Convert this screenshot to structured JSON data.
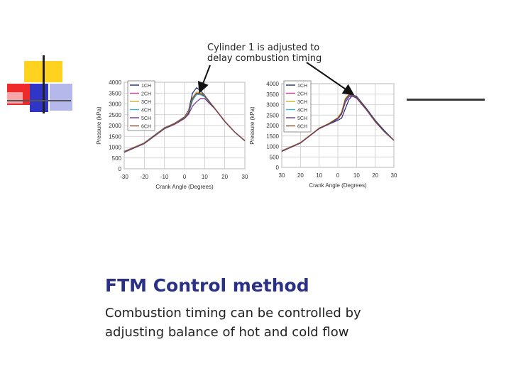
{
  "slide": {
    "title": "FTM Control method",
    "body": "Combustion timing can be controlled by adjusting balance of hot and cold flow"
  },
  "annotation": {
    "text": "Cylinder 1 is adjusted to\ndelay combustion timing"
  },
  "colors": {
    "title": "#2b3087",
    "deco_yellow": "#ffd21f",
    "deco_blue": "#2f35c4",
    "deco_red": "#ee2a2a",
    "deco_lightblue": "#b4b8ea",
    "deco_pink": "#f6a6a6"
  },
  "chart_data": [
    {
      "type": "line",
      "title": "",
      "xlabel": "Crank Angle (Degrees)",
      "ylabel": "Pressure (kPa)",
      "xlim": [
        -30,
        30
      ],
      "ylim": [
        0,
        4000
      ],
      "xticks": [
        "-30",
        "-20",
        "-10",
        "0",
        "10",
        "20",
        "30"
      ],
      "yticks": [
        "0",
        "500",
        "1000",
        "1500",
        "2000",
        "2500",
        "3000",
        "3500",
        "4000"
      ],
      "grid": true,
      "legend": "top-left",
      "series": [
        {
          "name": "1CH",
          "color": "#1a2a80",
          "x": [
            -30,
            -20,
            -10,
            -5,
            0,
            2,
            4,
            6,
            8,
            10,
            15,
            20,
            25,
            30
          ],
          "y": [
            800,
            1200,
            1900,
            2100,
            2400,
            2700,
            3500,
            3750,
            3600,
            3400,
            2800,
            2200,
            1700,
            1300
          ]
        },
        {
          "name": "2CH",
          "color": "#d04090",
          "x": [
            -30,
            -20,
            -10,
            -5,
            0,
            2,
            4,
            6,
            8,
            10,
            15,
            20,
            25,
            30
          ],
          "y": [
            780,
            1180,
            1870,
            2080,
            2360,
            2600,
            3200,
            3480,
            3450,
            3350,
            2800,
            2200,
            1700,
            1300
          ]
        },
        {
          "name": "3CH",
          "color": "#c8b030",
          "x": [
            -30,
            -20,
            -10,
            -5,
            0,
            2,
            4,
            6,
            8,
            10,
            15,
            20,
            25,
            30
          ],
          "y": [
            790,
            1190,
            1880,
            2090,
            2380,
            2650,
            3300,
            3550,
            3500,
            3380,
            2800,
            2200,
            1700,
            1300
          ]
        },
        {
          "name": "4CH",
          "color": "#30b8d8",
          "x": [
            -30,
            -20,
            -10,
            -5,
            0,
            2,
            4,
            6,
            8,
            10,
            15,
            20,
            25,
            30
          ],
          "y": [
            770,
            1170,
            1860,
            2060,
            2340,
            2560,
            3150,
            3430,
            3420,
            3330,
            2790,
            2190,
            1690,
            1290
          ]
        },
        {
          "name": "5CH",
          "color": "#7030a0",
          "x": [
            -30,
            -20,
            -10,
            -5,
            0,
            2,
            4,
            6,
            8,
            10,
            15,
            20,
            25,
            30
          ],
          "y": [
            760,
            1160,
            1850,
            2050,
            2320,
            2520,
            2900,
            3100,
            3250,
            3250,
            2780,
            2180,
            1690,
            1290
          ]
        },
        {
          "name": "6CH",
          "color": "#7a4a30",
          "x": [
            -30,
            -20,
            -10,
            -5,
            0,
            2,
            4,
            6,
            8,
            10,
            15,
            20,
            25,
            30
          ],
          "y": [
            780,
            1180,
            1870,
            2080,
            2360,
            2600,
            3250,
            3500,
            3470,
            3360,
            2800,
            2200,
            1700,
            1300
          ]
        }
      ]
    },
    {
      "type": "line",
      "title": "",
      "xlabel": "Crank Angle (Degrees)",
      "ylabel": "Pressure (kPa)",
      "xlim": [
        -30,
        30
      ],
      "ylim": [
        0,
        4000
      ],
      "xticks": [
        "30",
        "20",
        "10",
        "0",
        "10",
        "20",
        "30"
      ],
      "yticks": [
        "0",
        "500",
        "1000",
        "1500",
        "2000",
        "2500",
        "3000",
        "3500",
        "4000"
      ],
      "grid": true,
      "legend": "top-left",
      "series": [
        {
          "name": "1CH",
          "color": "#1a2a80",
          "x": [
            -30,
            -20,
            -10,
            -5,
            0,
            2,
            4,
            6,
            8,
            10,
            15,
            20,
            25,
            30
          ],
          "y": [
            800,
            1180,
            1850,
            2050,
            2250,
            2350,
            2800,
            3250,
            3450,
            3400,
            2850,
            2250,
            1750,
            1300
          ]
        },
        {
          "name": "2CH",
          "color": "#d04090",
          "x": [
            -30,
            -20,
            -10,
            -5,
            0,
            2,
            4,
            6,
            8,
            10,
            15,
            20,
            25,
            30
          ],
          "y": [
            790,
            1180,
            1870,
            2080,
            2360,
            2600,
            3200,
            3450,
            3420,
            3330,
            2800,
            2200,
            1700,
            1300
          ]
        },
        {
          "name": "3CH",
          "color": "#c8b030",
          "x": [
            -30,
            -20,
            -10,
            -5,
            0,
            2,
            4,
            6,
            8,
            10,
            15,
            20,
            25,
            30
          ],
          "y": [
            790,
            1190,
            1880,
            2090,
            2380,
            2650,
            3300,
            3500,
            3450,
            3350,
            2800,
            2200,
            1700,
            1300
          ]
        },
        {
          "name": "4CH",
          "color": "#30b8d8",
          "x": [
            -30,
            -20,
            -10,
            -5,
            0,
            2,
            4,
            6,
            8,
            10,
            15,
            20,
            25,
            30
          ],
          "y": [
            770,
            1170,
            1860,
            2060,
            2340,
            2560,
            3150,
            3400,
            3400,
            3320,
            2790,
            2190,
            1690,
            1290
          ]
        },
        {
          "name": "5CH",
          "color": "#7030a0",
          "x": [
            -30,
            -20,
            -10,
            -5,
            0,
            2,
            4,
            6,
            8,
            10,
            15,
            20,
            25,
            30
          ],
          "y": [
            760,
            1160,
            1850,
            2050,
            2320,
            2540,
            3100,
            3380,
            3390,
            3310,
            2780,
            2180,
            1690,
            1290
          ]
        },
        {
          "name": "6CH",
          "color": "#7a4a30",
          "x": [
            -30,
            -20,
            -10,
            -5,
            0,
            2,
            4,
            6,
            8,
            10,
            15,
            20,
            25,
            30
          ],
          "y": [
            780,
            1180,
            1870,
            2080,
            2360,
            2600,
            3250,
            3470,
            3440,
            3340,
            2800,
            2200,
            1700,
            1300
          ]
        }
      ]
    }
  ]
}
